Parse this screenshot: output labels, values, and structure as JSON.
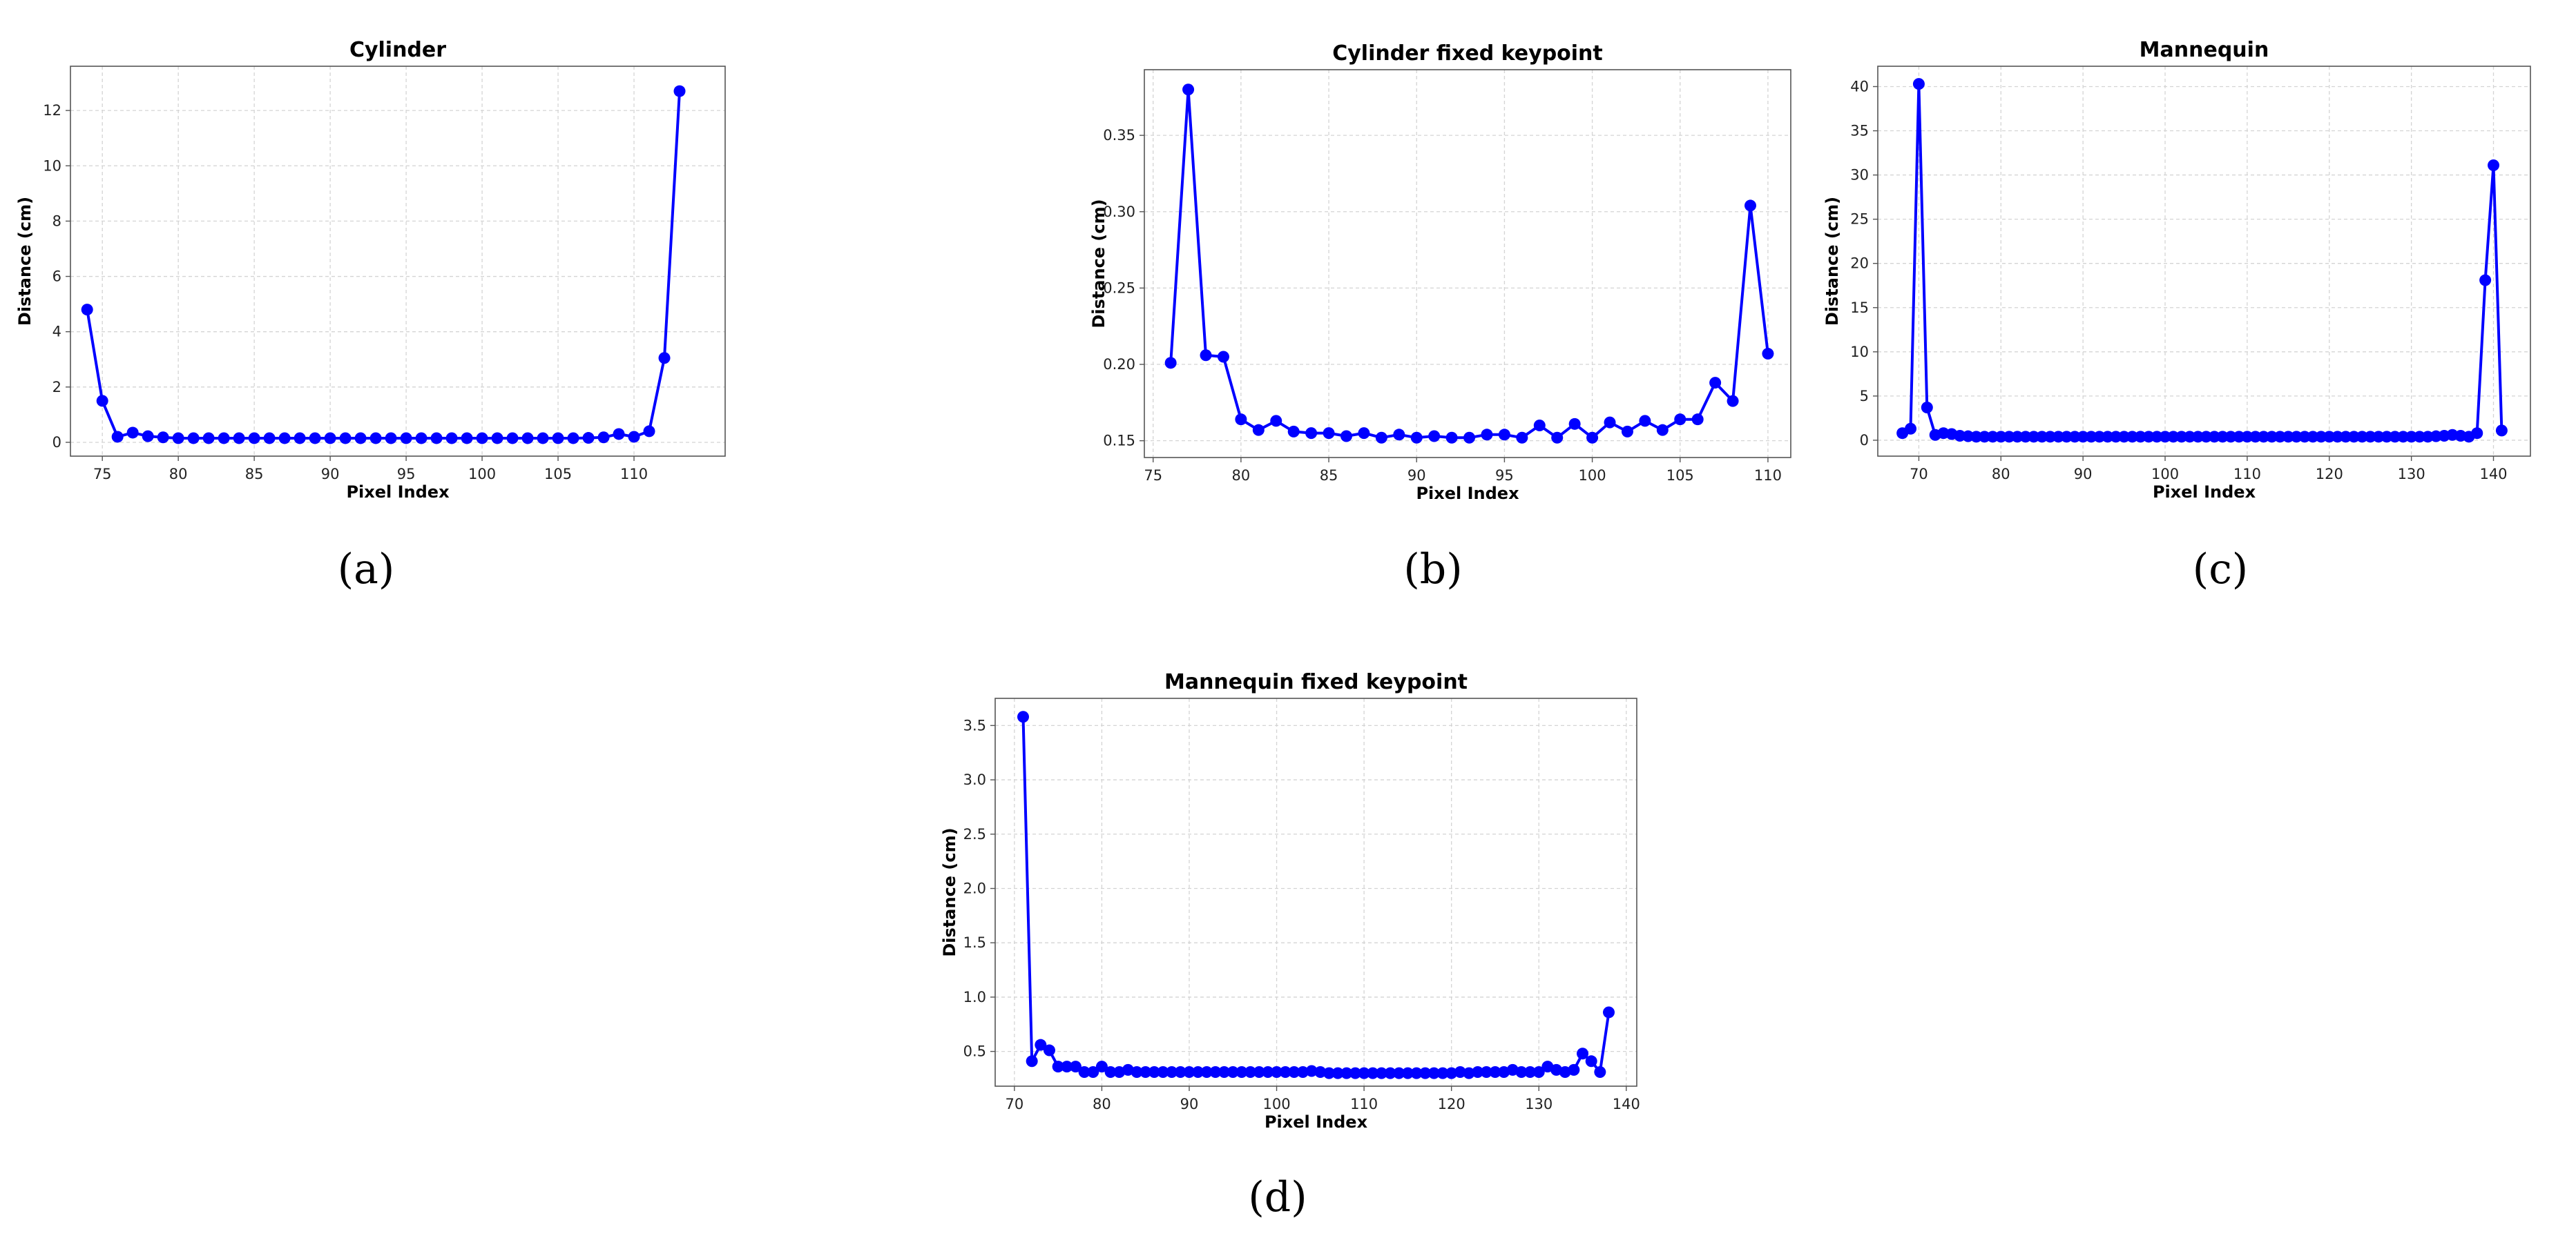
{
  "chart_data": [
    {
      "id": "a",
      "type": "line",
      "title": "Cylinder",
      "xlabel": "Pixel Index",
      "ylabel": "Distance (cm)",
      "caption": "(a)",
      "xlim": [
        72.9,
        116.0
      ],
      "ylim": [
        -0.5,
        13.6
      ],
      "xticks": [
        75,
        80,
        85,
        90,
        95,
        100,
        105,
        110
      ],
      "yticks": [
        0,
        2,
        4,
        6,
        8,
        10,
        12
      ],
      "grid": true,
      "series": [
        {
          "color": "#0000ff",
          "x": [
            74,
            75,
            76,
            77,
            78,
            79,
            80,
            81,
            82,
            83,
            84,
            85,
            86,
            87,
            88,
            89,
            90,
            91,
            92,
            93,
            94,
            95,
            96,
            97,
            98,
            99,
            100,
            101,
            102,
            103,
            104,
            105,
            106,
            107,
            108,
            109,
            110,
            111,
            112,
            113
          ],
          "y": [
            4.8,
            1.5,
            0.2,
            0.35,
            0.22,
            0.18,
            0.15,
            0.15,
            0.15,
            0.15,
            0.15,
            0.15,
            0.15,
            0.15,
            0.15,
            0.15,
            0.15,
            0.15,
            0.15,
            0.15,
            0.15,
            0.15,
            0.15,
            0.15,
            0.15,
            0.15,
            0.15,
            0.15,
            0.15,
            0.15,
            0.15,
            0.15,
            0.15,
            0.16,
            0.18,
            0.3,
            0.2,
            0.4,
            3.05,
            12.7
          ]
        }
      ]
    },
    {
      "id": "b",
      "type": "line",
      "title": "Cylinder fixed keypoint",
      "xlabel": "Pixel Index",
      "ylabel": "Distance (cm)",
      "caption": "(b)",
      "xlim": [
        74.5,
        111.3
      ],
      "ylim": [
        0.139,
        0.393
      ],
      "xticks": [
        75,
        80,
        85,
        90,
        95,
        100,
        105,
        110
      ],
      "yticks": [
        0.15,
        0.2,
        0.25,
        0.3,
        0.35
      ],
      "ytick_labels": [
        "0.15",
        "0.20",
        "0.25",
        "0.30",
        "0.35"
      ],
      "grid": true,
      "series": [
        {
          "color": "#0000ff",
          "x": [
            76,
            77,
            78,
            79,
            80,
            81,
            82,
            83,
            84,
            85,
            86,
            87,
            88,
            89,
            90,
            91,
            92,
            93,
            94,
            95,
            96,
            97,
            98,
            99,
            100,
            101,
            102,
            103,
            104,
            105,
            106,
            107,
            108,
            109,
            110
          ],
          "y": [
            0.201,
            0.38,
            0.206,
            0.205,
            0.164,
            0.157,
            0.163,
            0.156,
            0.155,
            0.155,
            0.153,
            0.155,
            0.152,
            0.154,
            0.152,
            0.153,
            0.152,
            0.152,
            0.154,
            0.154,
            0.152,
            0.16,
            0.152,
            0.161,
            0.152,
            0.162,
            0.156,
            0.163,
            0.157,
            0.164,
            0.164,
            0.188,
            0.176,
            0.304,
            0.207
          ]
        }
      ]
    },
    {
      "id": "c",
      "type": "line",
      "title": "Mannequin",
      "xlabel": "Pixel Index",
      "ylabel": "Distance (cm)",
      "caption": "(c)",
      "xlim": [
        65.0,
        144.5
      ],
      "ylim": [
        -1.8,
        42.3
      ],
      "xticks": [
        70,
        80,
        90,
        100,
        110,
        120,
        130,
        140
      ],
      "yticks": [
        0,
        5,
        10,
        15,
        20,
        25,
        30,
        35,
        40
      ],
      "grid": true,
      "series": [
        {
          "color": "#0000ff",
          "x": [
            68,
            69,
            70,
            71,
            72,
            73,
            74,
            75,
            76,
            77,
            78,
            79,
            80,
            81,
            82,
            83,
            84,
            85,
            86,
            87,
            88,
            89,
            90,
            91,
            92,
            93,
            94,
            95,
            96,
            97,
            98,
            99,
            100,
            101,
            102,
            103,
            104,
            105,
            106,
            107,
            108,
            109,
            110,
            111,
            112,
            113,
            114,
            115,
            116,
            117,
            118,
            119,
            120,
            121,
            122,
            123,
            124,
            125,
            126,
            127,
            128,
            129,
            130,
            131,
            132,
            133,
            134,
            135,
            136,
            137,
            138,
            139,
            140,
            141
          ],
          "y": [
            0.8,
            1.3,
            40.3,
            3.7,
            0.6,
            0.8,
            0.7,
            0.5,
            0.45,
            0.4,
            0.4,
            0.4,
            0.4,
            0.4,
            0.4,
            0.4,
            0.4,
            0.4,
            0.4,
            0.4,
            0.4,
            0.4,
            0.4,
            0.4,
            0.4,
            0.4,
            0.4,
            0.4,
            0.4,
            0.4,
            0.4,
            0.4,
            0.4,
            0.4,
            0.4,
            0.4,
            0.4,
            0.4,
            0.4,
            0.4,
            0.4,
            0.4,
            0.4,
            0.4,
            0.4,
            0.4,
            0.4,
            0.4,
            0.4,
            0.4,
            0.4,
            0.4,
            0.4,
            0.4,
            0.4,
            0.4,
            0.4,
            0.4,
            0.4,
            0.4,
            0.4,
            0.4,
            0.4,
            0.4,
            0.4,
            0.45,
            0.5,
            0.6,
            0.5,
            0.4,
            0.8,
            18.1,
            31.1,
            1.1
          ]
        }
      ]
    },
    {
      "id": "d",
      "type": "line",
      "title": "Mannequin fixed keypoint",
      "xlabel": "Pixel Index",
      "ylabel": "Distance (cm)",
      "caption": "(d)",
      "xlim": [
        67.8,
        141.2
      ],
      "ylim": [
        0.18,
        3.75
      ],
      "xticks": [
        70,
        80,
        90,
        100,
        110,
        120,
        130,
        140
      ],
      "yticks": [
        0.5,
        1.0,
        1.5,
        2.0,
        2.5,
        3.0,
        3.5
      ],
      "ytick_labels": [
        "0.5",
        "1.0",
        "1.5",
        "2.0",
        "2.5",
        "3.0",
        "3.5"
      ],
      "grid": true,
      "series": [
        {
          "color": "#0000ff",
          "x": [
            71,
            72,
            73,
            74,
            75,
            76,
            77,
            78,
            79,
            80,
            81,
            82,
            83,
            84,
            85,
            86,
            87,
            88,
            89,
            90,
            91,
            92,
            93,
            94,
            95,
            96,
            97,
            98,
            99,
            100,
            101,
            102,
            103,
            104,
            105,
            106,
            107,
            108,
            109,
            110,
            111,
            112,
            113,
            114,
            115,
            116,
            117,
            118,
            119,
            120,
            121,
            122,
            123,
            124,
            125,
            126,
            127,
            128,
            129,
            130,
            131,
            132,
            133,
            134,
            135,
            136,
            137,
            138
          ],
          "y": [
            3.58,
            0.41,
            0.56,
            0.51,
            0.36,
            0.36,
            0.36,
            0.31,
            0.31,
            0.36,
            0.31,
            0.31,
            0.33,
            0.31,
            0.31,
            0.31,
            0.31,
            0.31,
            0.31,
            0.31,
            0.31,
            0.31,
            0.31,
            0.31,
            0.31,
            0.31,
            0.31,
            0.31,
            0.31,
            0.31,
            0.31,
            0.31,
            0.31,
            0.32,
            0.31,
            0.3,
            0.3,
            0.3,
            0.3,
            0.3,
            0.3,
            0.3,
            0.3,
            0.3,
            0.3,
            0.3,
            0.3,
            0.3,
            0.3,
            0.3,
            0.31,
            0.3,
            0.31,
            0.31,
            0.31,
            0.31,
            0.33,
            0.31,
            0.31,
            0.31,
            0.36,
            0.33,
            0.31,
            0.33,
            0.48,
            0.41,
            0.31,
            0.86
          ]
        }
      ]
    }
  ]
}
